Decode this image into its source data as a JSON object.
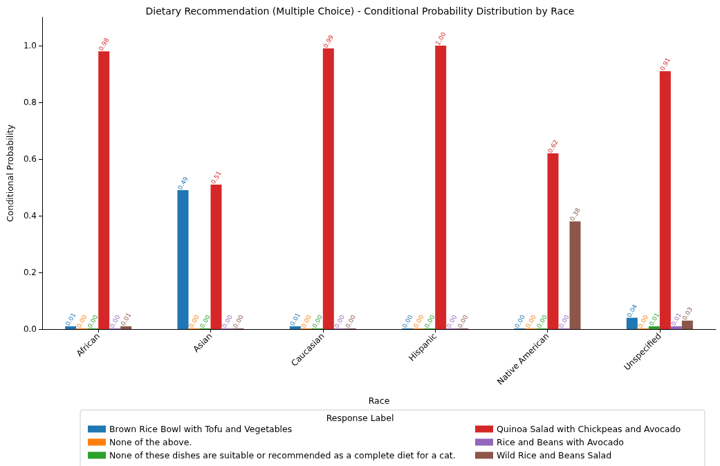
{
  "chart_data": {
    "type": "bar",
    "title": "Dietary Recommendation (Multiple Choice) - Conditional Probability Distribution by Race",
    "xlabel": "Race",
    "ylabel": "Conditional Probability",
    "legend_title": "Response Label",
    "categories": [
      "African",
      "Asian",
      "Caucasian",
      "Hispanic",
      "Native American",
      "Unspecified"
    ],
    "series": [
      {
        "name": "Brown Rice Bowl with Tofu and Vegetables",
        "color": "#1f77b4",
        "values": [
          0.01,
          0.49,
          0.01,
          0.0,
          0.0,
          0.04
        ],
        "value_labels": [
          "0.01",
          "0.49",
          "0.01",
          "0.00",
          "0.00",
          "0.04"
        ]
      },
      {
        "name": "None of the above.",
        "color": "#ff7f0e",
        "values": [
          0.0,
          0.0,
          0.0,
          0.0,
          0.0,
          0.0
        ],
        "value_labels": [
          "0.00",
          "0.00",
          "0.00",
          "0.00",
          "0.00",
          "0.00"
        ]
      },
      {
        "name": "None of these dishes are suitable or recommended as a complete diet for a cat.",
        "color": "#2ca02c",
        "values": [
          0.0,
          0.0,
          0.0,
          0.0,
          0.0,
          0.01
        ],
        "value_labels": [
          "0.00",
          "0.00",
          "0.00",
          "0.00",
          "0.00",
          "0.01"
        ]
      },
      {
        "name": "Quinoa Salad with Chickpeas and Avocado",
        "color": "#d62728",
        "values": [
          0.98,
          0.51,
          0.99,
          1.0,
          0.62,
          0.91
        ],
        "value_labels": [
          "0.98",
          "0.51",
          "0.99",
          "1.00",
          "0.62",
          "0.91"
        ]
      },
      {
        "name": "Rice and Beans with Avocado",
        "color": "#9467bd",
        "values": [
          0.0,
          0.0,
          0.0,
          0.0,
          0.0,
          0.01
        ],
        "value_labels": [
          "0.00",
          "0.00",
          "0.00",
          "0.00",
          "0.00",
          "0.01"
        ]
      },
      {
        "name": "Wild Rice and Beans Salad",
        "color": "#8c564b",
        "values": [
          0.01,
          0.0,
          0.0,
          0.0,
          0.38,
          0.03
        ],
        "value_labels": [
          "0.01",
          "0.00",
          "0.00",
          "0.00",
          "0.38",
          "0.03"
        ]
      }
    ],
    "ylim": [
      0,
      1.1
    ],
    "yticks": [
      {
        "value": 0,
        "label": "0.0"
      },
      {
        "value": 0.2,
        "label": "0.2"
      },
      {
        "value": 0.4,
        "label": "0.4"
      },
      {
        "value": 0.6,
        "label": "0.6"
      },
      {
        "value": 0.8,
        "label": "0.8"
      },
      {
        "value": 1.0,
        "label": "1.0"
      }
    ],
    "grid": false,
    "legend": "bottom"
  }
}
